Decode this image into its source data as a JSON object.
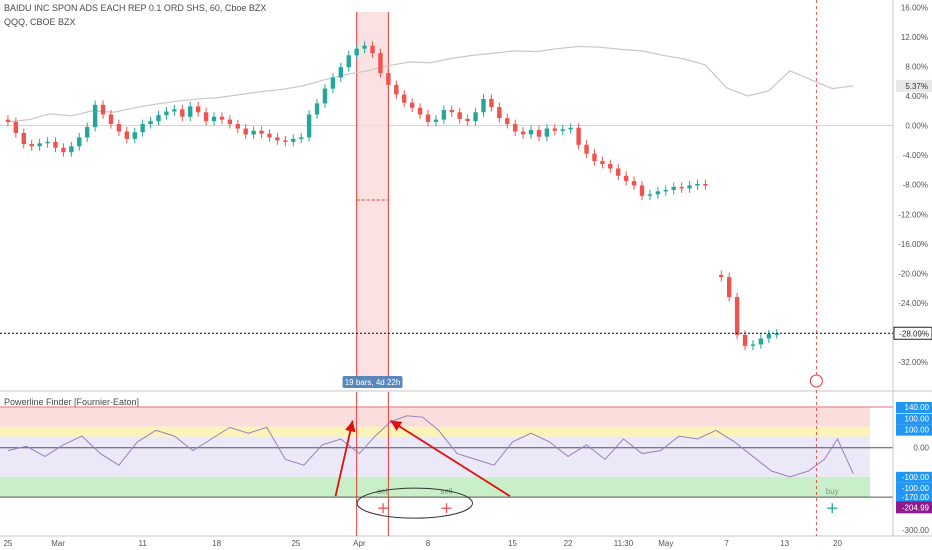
{
  "header": {
    "title": "BAIDU INC SPON ADS EACH REP 0.1 ORD SHS, 60, Cboe BZX",
    "compare": "QQQ, CBOE BZX",
    "indicator": "Powerline Finder [Fournier-Eaton]"
  },
  "colors": {
    "up": "#26a69a",
    "down": "#ef5350",
    "compare_line": "#c8c8c8",
    "indicator_line": "#9c7fb8",
    "last_price_tag": "#ffffff",
    "oscillator_tag": "#8e1a8e",
    "level_tag": "#2196f3",
    "arrow": "#e01010",
    "range_box": "#fadada"
  },
  "measure": {
    "label": "19 bars, 4d 22h"
  },
  "chart_data": [
    {
      "type": "candlestick",
      "title": "BAIDU INC SPON ADS EACH REP 0.1 ORD SHS, 60, Cboe BZX",
      "x_ticks": [
        "25",
        "Mar",
        "11",
        "18",
        "25",
        "Apr",
        "8",
        "15",
        "22",
        "11:30",
        "May",
        "7",
        "13",
        "20"
      ],
      "x_tick_pos": [
        0.0,
        1.9,
        5.1,
        7.9,
        10.9,
        13.3,
        15.9,
        19.1,
        21.2,
        23.3,
        24.9,
        27.2,
        29.4,
        31.4
      ],
      "x_range": [
        -0.3,
        33.5
      ],
      "y_unit": "%",
      "y_ticks": [
        "16.00%",
        "12.00%",
        "8.00%",
        "4.00%",
        "0.00%",
        "-4.00%",
        "-8.00%",
        "-12.00%",
        "-16.00%",
        "-20.00%",
        "-24.00%",
        "-28.00%",
        "-32.00%"
      ],
      "ylim": [
        -33.6,
        15.9
      ],
      "last_value_tag": "-28.09%",
      "compare_value_tag": "5.37%",
      "series": [
        {
          "name": "BAIDU INC SPON ADS EACH REP 0.1 ORD SHS",
          "close": [
            0.5,
            -1.0,
            -2.5,
            -2.8,
            -2.4,
            -2.2,
            -3.0,
            -3.6,
            -2.8,
            -1.6,
            -0.2,
            2.8,
            1.5,
            0.2,
            -0.8,
            -1.8,
            -0.9,
            0.2,
            0.6,
            1.4,
            1.9,
            2.2,
            1.2,
            2.6,
            1.8,
            0.6,
            1.2,
            0.8,
            0.2,
            -0.4,
            -1.2,
            -0.7,
            -1.1,
            -1.6,
            -2.0,
            -2.2,
            -1.8,
            -1.6,
            1.5,
            3.0,
            5.0,
            6.5,
            7.9,
            9.5,
            10.4,
            10.8,
            9.8,
            7.1,
            5.5,
            4.2,
            3.1,
            2.4,
            1.5,
            0.5,
            0.8,
            2.1,
            1.8,
            0.9,
            0.6,
            1.8,
            3.6,
            2.5,
            1.0,
            0.2,
            -0.8,
            -1.2,
            -0.6,
            -1.5,
            -0.4,
            -0.7,
            -0.5,
            -0.3,
            -2.6,
            -3.8,
            -4.8,
            -5.2,
            -5.8,
            -6.8,
            -7.5,
            -8.1,
            -9.5,
            -9.3,
            -8.9,
            -8.7,
            -8.3,
            -8.5,
            -8.1,
            -7.9,
            -8.1,
            null,
            -20.5,
            -23.2,
            -28.3,
            -29.8,
            -29.6,
            -28.8,
            -28.2,
            -28.1
          ],
          "x": [
            0.0,
            0.3,
            0.6,
            0.9,
            1.2,
            1.5,
            1.8,
            2.1,
            2.4,
            2.7,
            3.0,
            3.3,
            3.6,
            3.9,
            4.2,
            4.5,
            4.8,
            5.1,
            5.4,
            5.7,
            6.0,
            6.3,
            6.6,
            6.9,
            7.2,
            7.5,
            7.8,
            8.1,
            8.4,
            8.7,
            9.0,
            9.3,
            9.6,
            9.9,
            10.2,
            10.5,
            10.8,
            11.1,
            11.4,
            11.7,
            12.0,
            12.3,
            12.6,
            12.9,
            13.2,
            13.5,
            13.8,
            14.1,
            14.4,
            14.7,
            15.0,
            15.3,
            15.6,
            15.9,
            16.2,
            16.5,
            16.8,
            17.1,
            17.4,
            17.7,
            18.0,
            18.3,
            18.6,
            18.9,
            19.2,
            19.5,
            19.8,
            20.1,
            20.4,
            20.7,
            21.0,
            21.3,
            21.6,
            21.9,
            22.2,
            22.5,
            22.8,
            23.1,
            23.4,
            23.7,
            24.0,
            24.3,
            24.6,
            24.9,
            25.2,
            25.5,
            25.8,
            26.1,
            26.4,
            26.7,
            27.0,
            27.3,
            27.6,
            27.9,
            28.2,
            28.5,
            28.8,
            29.1
          ]
        },
        {
          "name": "QQQ, CBOE BZX",
          "x": [
            0.0,
            0.8,
            1.6,
            2.4,
            3.2,
            4.0,
            4.8,
            5.6,
            6.4,
            7.2,
            8.0,
            8.8,
            9.6,
            10.4,
            11.2,
            12.0,
            12.8,
            13.6,
            14.4,
            15.2,
            16.0,
            16.8,
            17.6,
            18.4,
            19.2,
            20.0,
            20.8,
            21.6,
            22.4,
            23.2,
            24.0,
            24.8,
            25.6,
            26.4,
            27.2,
            28.0,
            28.8,
            29.6,
            30.4,
            31.2,
            32.0
          ],
          "values": [
            0.5,
            0.8,
            1.6,
            1.3,
            2.0,
            1.8,
            2.4,
            2.9,
            3.3,
            3.6,
            3.8,
            4.2,
            4.6,
            4.9,
            5.4,
            6.2,
            6.9,
            7.4,
            8.1,
            8.6,
            8.5,
            9.1,
            9.5,
            9.8,
            10.1,
            10.0,
            10.4,
            10.7,
            10.6,
            10.3,
            10.1,
            9.5,
            9.0,
            8.2,
            5.1,
            4.0,
            4.7,
            7.4,
            6.2,
            5.0,
            5.37
          ]
        }
      ]
    },
    {
      "type": "line",
      "title": "Powerline Finder [Fournier-Eaton]",
      "y_ticks": [
        "140.00",
        "100.00",
        "100.00",
        "0.00",
        "-100.00",
        "-100.00",
        "-170.00",
        "-204.99",
        "-300.00"
      ],
      "levels": [
        140,
        100,
        0,
        -100,
        -170
      ],
      "ylim": [
        -300,
        140
      ],
      "series": [
        {
          "name": "Powerline Finder [Fournier-Eaton]",
          "x": [
            0.0,
            0.7,
            1.4,
            2.1,
            2.8,
            3.5,
            4.2,
            4.9,
            5.6,
            6.3,
            7.0,
            7.7,
            8.4,
            9.1,
            9.8,
            10.5,
            11.2,
            11.9,
            12.6,
            13.3,
            13.9,
            14.5,
            15.1,
            15.7,
            16.3,
            17.0,
            17.7,
            18.4,
            19.1,
            19.8,
            20.5,
            21.2,
            21.9,
            22.6,
            23.3,
            24.0,
            24.7,
            25.4,
            26.1,
            26.8,
            27.5,
            28.2,
            28.9,
            29.6,
            30.3,
            30.9,
            31.4,
            32.0
          ],
          "values": [
            -10,
            5,
            -30,
            10,
            40,
            -20,
            -60,
            20,
            60,
            40,
            -10,
            30,
            70,
            50,
            70,
            -40,
            -60,
            10,
            30,
            -20,
            40,
            90,
            110,
            105,
            60,
            -20,
            -40,
            -60,
            20,
            50,
            20,
            -30,
            10,
            -40,
            30,
            -20,
            -10,
            40,
            30,
            60,
            20,
            -30,
            -80,
            -100,
            -80,
            -40,
            30,
            -90
          ]
        }
      ],
      "markers": [
        {
          "x": 14.2,
          "label": "sell"
        },
        {
          "x": 16.6,
          "label": "sell"
        },
        {
          "x": 31.2,
          "label": "buy"
        }
      ]
    }
  ]
}
